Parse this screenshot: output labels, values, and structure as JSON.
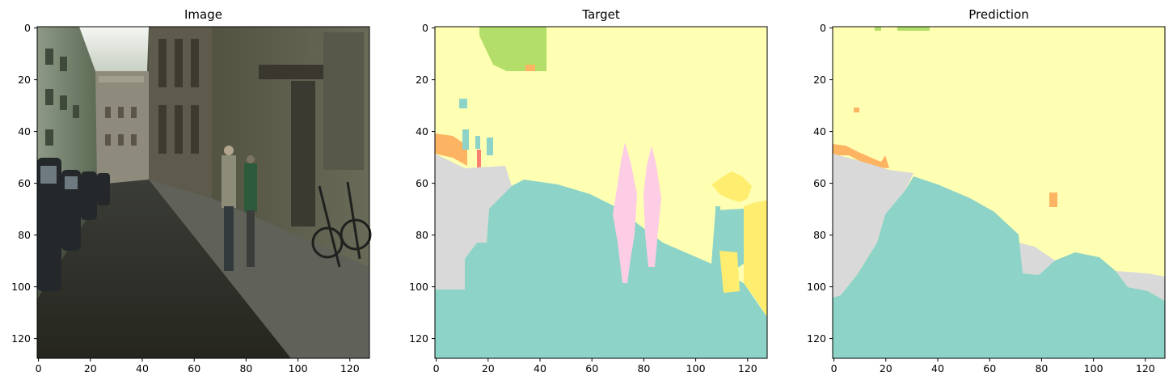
{
  "panels": [
    {
      "title": "Image",
      "kind": "photo"
    },
    {
      "title": "Target",
      "kind": "segmentation"
    },
    {
      "title": "Prediction",
      "kind": "segmentation"
    }
  ],
  "axes": {
    "xticks": [
      "0",
      "20",
      "40",
      "60",
      "80",
      "100",
      "120"
    ],
    "yticks": [
      "0",
      "20",
      "40",
      "60",
      "80",
      "100",
      "120"
    ],
    "extent": [
      0,
      128
    ]
  },
  "palette": {
    "road": "#8dd3c7",
    "building": "#ffffb3",
    "sidewalk": "#d9d9d9",
    "vegetation": "#b3de69",
    "person": "#fccde5",
    "car_orange": "#fdb462",
    "red": "#fb8072",
    "bike_yellow": "#ffed6f"
  }
}
